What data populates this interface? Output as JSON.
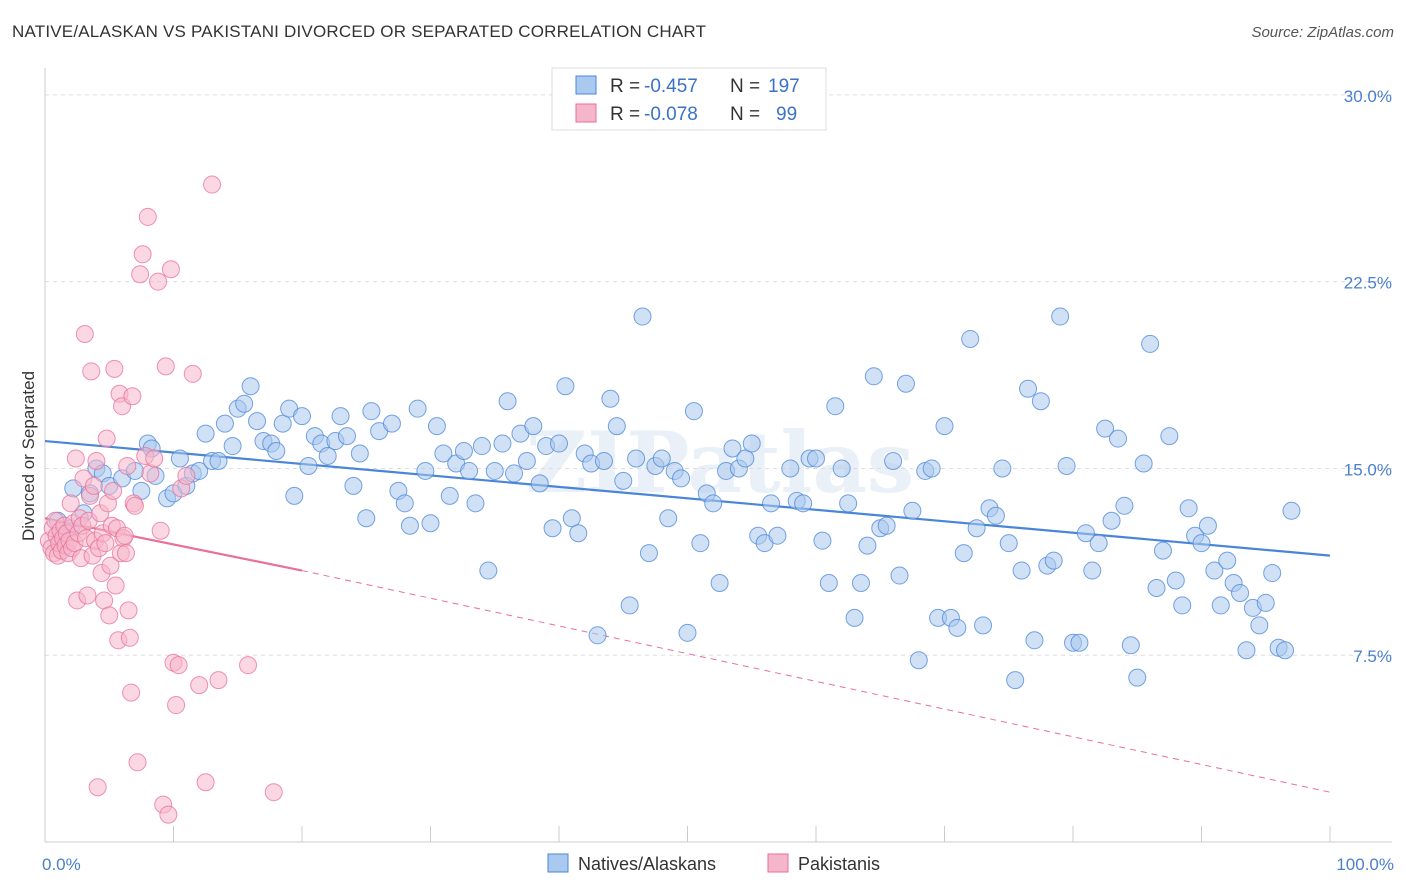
{
  "title": "NATIVE/ALASKAN VS PAKISTANI DIVORCED OR SEPARATED CORRELATION CHART",
  "source": "Source: ZipAtlas.com",
  "watermark": "ZIPatlas",
  "chart_data": {
    "type": "scatter",
    "ylabel": "Divorced or Separated",
    "xlim": [
      0,
      100
    ],
    "ylim": [
      0,
      31
    ],
    "x_ticks": [
      "0.0%",
      "100.0%"
    ],
    "y_ticks": [
      {
        "value": 7.5,
        "label": "7.5%"
      },
      {
        "value": 15.0,
        "label": "15.0%"
      },
      {
        "value": 22.5,
        "label": "22.5%"
      },
      {
        "value": 30.0,
        "label": "30.0%"
      }
    ],
    "grid": "horizontal dashed",
    "legend_position": "top-center",
    "series": [
      {
        "name": "Natives/Alaskans",
        "color": "#4a86d8",
        "fill": "#aac9ef",
        "r_label": "R =",
        "r_value": "-0.457",
        "n_label": "N =",
        "n_value": "197",
        "trend": {
          "x1": 0,
          "y1": 16.1,
          "x2": 100,
          "y2": 11.5
        },
        "points": [
          [
            1,
            12.9
          ],
          [
            1.3,
            12.3
          ],
          [
            2,
            12.6
          ],
          [
            2.2,
            14.2
          ],
          [
            3,
            13.2
          ],
          [
            3.5,
            14.0
          ],
          [
            4,
            15.0
          ],
          [
            4.5,
            14.8
          ],
          [
            5,
            14.3
          ],
          [
            6,
            14.6
          ],
          [
            7,
            14.9
          ],
          [
            7.5,
            14.1
          ],
          [
            8,
            16.0
          ],
          [
            8.3,
            15.8
          ],
          [
            8.6,
            14.7
          ],
          [
            9.5,
            13.8
          ],
          [
            10,
            14.0
          ],
          [
            10.5,
            15.4
          ],
          [
            11,
            14.3
          ],
          [
            11.5,
            14.8
          ],
          [
            12,
            14.9
          ],
          [
            12.5,
            16.4
          ],
          [
            13,
            15.3
          ],
          [
            13.5,
            15.3
          ],
          [
            14,
            16.8
          ],
          [
            14.6,
            15.9
          ],
          [
            15,
            17.4
          ],
          [
            15.5,
            17.6
          ],
          [
            16,
            18.3
          ],
          [
            16.5,
            16.9
          ],
          [
            17,
            16.1
          ],
          [
            17.6,
            16.0
          ],
          [
            18,
            15.7
          ],
          [
            18.5,
            16.8
          ],
          [
            19,
            17.4
          ],
          [
            19.4,
            13.9
          ],
          [
            20,
            17.1
          ],
          [
            20.5,
            15.1
          ],
          [
            21,
            16.3
          ],
          [
            21.5,
            16.0
          ],
          [
            22,
            15.5
          ],
          [
            22.6,
            16.1
          ],
          [
            23,
            17.1
          ],
          [
            23.5,
            16.3
          ],
          [
            24,
            14.3
          ],
          [
            24.5,
            15.6
          ],
          [
            25,
            13.0
          ],
          [
            25.4,
            17.3
          ],
          [
            26,
            16.5
          ],
          [
            27,
            16.8
          ],
          [
            27.5,
            14.1
          ],
          [
            28,
            13.6
          ],
          [
            28.4,
            12.7
          ],
          [
            29,
            17.4
          ],
          [
            29.6,
            14.9
          ],
          [
            30,
            12.8
          ],
          [
            30.5,
            16.7
          ],
          [
            31,
            15.6
          ],
          [
            31.5,
            13.9
          ],
          [
            32,
            15.2
          ],
          [
            32.6,
            15.7
          ],
          [
            33,
            14.9
          ],
          [
            33.5,
            13.6
          ],
          [
            34,
            15.9
          ],
          [
            34.5,
            10.9
          ],
          [
            35,
            14.9
          ],
          [
            35.6,
            16.0
          ],
          [
            36,
            17.7
          ],
          [
            36.5,
            14.8
          ],
          [
            37,
            16.4
          ],
          [
            37.5,
            15.3
          ],
          [
            38,
            16.7
          ],
          [
            38.5,
            14.4
          ],
          [
            39,
            15.9
          ],
          [
            39.5,
            12.6
          ],
          [
            40,
            16.0
          ],
          [
            40.5,
            18.3
          ],
          [
            41,
            13.0
          ],
          [
            41.5,
            12.4
          ],
          [
            42,
            15.6
          ],
          [
            42.5,
            15.2
          ],
          [
            43,
            8.3
          ],
          [
            43.5,
            15.3
          ],
          [
            44,
            17.8
          ],
          [
            44.5,
            16.7
          ],
          [
            45,
            14.5
          ],
          [
            45.5,
            9.5
          ],
          [
            46,
            15.4
          ],
          [
            46.5,
            21.1
          ],
          [
            47,
            11.6
          ],
          [
            47.5,
            15.1
          ],
          [
            48,
            15.4
          ],
          [
            48.5,
            13.0
          ],
          [
            49,
            14.9
          ],
          [
            49.5,
            14.6
          ],
          [
            50,
            8.4
          ],
          [
            50.5,
            17.3
          ],
          [
            51,
            12.0
          ],
          [
            51.5,
            14.0
          ],
          [
            52,
            13.6
          ],
          [
            52.5,
            10.4
          ],
          [
            53,
            14.9
          ],
          [
            53.5,
            15.8
          ],
          [
            54,
            15.0
          ],
          [
            54.5,
            15.4
          ],
          [
            55,
            16.0
          ],
          [
            55.5,
            12.3
          ],
          [
            56,
            12.0
          ],
          [
            56.5,
            13.6
          ],
          [
            57,
            12.3
          ],
          [
            58,
            15.0
          ],
          [
            58.5,
            13.7
          ],
          [
            59,
            13.6
          ],
          [
            59.5,
            15.4
          ],
          [
            60,
            15.4
          ],
          [
            60.5,
            12.1
          ],
          [
            61,
            10.4
          ],
          [
            61.5,
            17.5
          ],
          [
            62,
            15.0
          ],
          [
            62.5,
            13.6
          ],
          [
            63,
            9.0
          ],
          [
            63.5,
            10.4
          ],
          [
            64,
            11.9
          ],
          [
            64.5,
            18.7
          ],
          [
            65,
            12.6
          ],
          [
            65.5,
            12.7
          ],
          [
            66,
            15.3
          ],
          [
            66.5,
            10.7
          ],
          [
            67,
            18.4
          ],
          [
            67.5,
            13.3
          ],
          [
            68,
            7.3
          ],
          [
            68.5,
            14.9
          ],
          [
            69,
            15.0
          ],
          [
            69.5,
            9.0
          ],
          [
            70,
            16.7
          ],
          [
            70.5,
            9.0
          ],
          [
            71,
            8.6
          ],
          [
            71.5,
            11.6
          ],
          [
            72,
            20.2
          ],
          [
            72.5,
            12.6
          ],
          [
            73,
            8.7
          ],
          [
            73.5,
            13.4
          ],
          [
            74,
            13.1
          ],
          [
            74.5,
            15.0
          ],
          [
            75,
            12.0
          ],
          [
            75.5,
            6.5
          ],
          [
            76,
            10.9
          ],
          [
            76.5,
            18.2
          ],
          [
            77,
            8.1
          ],
          [
            77.5,
            17.7
          ],
          [
            78,
            11.1
          ],
          [
            78.5,
            11.3
          ],
          [
            79,
            21.1
          ],
          [
            79.5,
            15.1
          ],
          [
            80,
            8.0
          ],
          [
            80.5,
            8.0
          ],
          [
            81,
            12.4
          ],
          [
            81.5,
            10.9
          ],
          [
            82,
            12.0
          ],
          [
            82.5,
            16.6
          ],
          [
            83,
            12.9
          ],
          [
            83.5,
            16.2
          ],
          [
            84,
            13.5
          ],
          [
            84.5,
            7.9
          ],
          [
            85,
            6.6
          ],
          [
            85.5,
            15.2
          ],
          [
            86,
            20.0
          ],
          [
            86.5,
            10.2
          ],
          [
            87,
            11.7
          ],
          [
            87.5,
            16.3
          ],
          [
            88,
            10.5
          ],
          [
            88.5,
            9.5
          ],
          [
            89,
            13.4
          ],
          [
            89.5,
            12.3
          ],
          [
            90,
            12.0
          ],
          [
            90.5,
            12.7
          ],
          [
            91,
            10.9
          ],
          [
            91.5,
            9.5
          ],
          [
            92,
            11.3
          ],
          [
            92.5,
            10.4
          ],
          [
            93,
            10.0
          ],
          [
            93.5,
            7.7
          ],
          [
            94,
            9.4
          ],
          [
            94.5,
            8.7
          ],
          [
            95,
            9.6
          ],
          [
            95.5,
            10.8
          ],
          [
            96,
            7.8
          ],
          [
            96.5,
            7.7
          ],
          [
            97,
            13.3
          ]
        ]
      },
      {
        "name": "Pakistanis",
        "color": "#e8709a",
        "fill": "#f5b6cb",
        "r_label": "R =",
        "r_value": "-0.078",
        "n_label": "N =",
        "n_value": "99",
        "trend": {
          "x1": 0,
          "y1": 13.0,
          "x2": 20,
          "y2": 10.9
        },
        "trend_dashed": {
          "x1": 20,
          "y1": 10.9,
          "x2": 100,
          "y2": 2.0
        },
        "points": [
          [
            0.3,
            12.1
          ],
          [
            0.5,
            11.8
          ],
          [
            0.6,
            12.6
          ],
          [
            0.7,
            11.6
          ],
          [
            0.8,
            12.9
          ],
          [
            0.9,
            12.3
          ],
          [
            1.0,
            11.5
          ],
          [
            1.1,
            12.0
          ],
          [
            1.2,
            12.5
          ],
          [
            1.3,
            11.7
          ],
          [
            1.4,
            12.2
          ],
          [
            1.5,
            12.7
          ],
          [
            1.6,
            11.9
          ],
          [
            1.7,
            12.4
          ],
          [
            1.8,
            11.6
          ],
          [
            1.9,
            12.1
          ],
          [
            2.0,
            13.6
          ],
          [
            2.1,
            11.8
          ],
          [
            2.2,
            12.8
          ],
          [
            2.3,
            12.0
          ],
          [
            2.4,
            15.4
          ],
          [
            2.5,
            9.7
          ],
          [
            2.6,
            12.4
          ],
          [
            2.7,
            13.0
          ],
          [
            2.8,
            11.4
          ],
          [
            2.9,
            12.7
          ],
          [
            3.0,
            14.6
          ],
          [
            3.1,
            20.4
          ],
          [
            3.2,
            12.2
          ],
          [
            3.3,
            9.9
          ],
          [
            3.4,
            12.9
          ],
          [
            3.5,
            13.9
          ],
          [
            3.6,
            18.9
          ],
          [
            3.7,
            11.5
          ],
          [
            3.8,
            14.3
          ],
          [
            3.9,
            12.1
          ],
          [
            4.0,
            15.3
          ],
          [
            4.1,
            2.2
          ],
          [
            4.2,
            11.8
          ],
          [
            4.3,
            13.2
          ],
          [
            4.4,
            10.8
          ],
          [
            4.5,
            12.4
          ],
          [
            4.6,
            9.7
          ],
          [
            4.7,
            12.0
          ],
          [
            4.8,
            16.2
          ],
          [
            4.9,
            13.6
          ],
          [
            5.0,
            9.1
          ],
          [
            5.1,
            11.1
          ],
          [
            5.2,
            12.7
          ],
          [
            5.3,
            14.1
          ],
          [
            5.4,
            19.0
          ],
          [
            5.5,
            10.3
          ],
          [
            5.6,
            12.6
          ],
          [
            5.7,
            8.1
          ],
          [
            5.8,
            18.0
          ],
          [
            5.9,
            11.6
          ],
          [
            6.0,
            17.5
          ],
          [
            6.1,
            12.2
          ],
          [
            6.2,
            12.3
          ],
          [
            6.3,
            11.6
          ],
          [
            6.4,
            15.1
          ],
          [
            6.5,
            9.3
          ],
          [
            6.6,
            8.2
          ],
          [
            6.7,
            6.0
          ],
          [
            6.8,
            17.9
          ],
          [
            6.9,
            13.6
          ],
          [
            7.0,
            13.5
          ],
          [
            7.2,
            3.2
          ],
          [
            7.4,
            22.8
          ],
          [
            7.6,
            23.6
          ],
          [
            7.8,
            15.5
          ],
          [
            8.0,
            25.1
          ],
          [
            8.2,
            14.8
          ],
          [
            8.5,
            15.4
          ],
          [
            8.8,
            22.5
          ],
          [
            9.0,
            12.5
          ],
          [
            9.2,
            1.5
          ],
          [
            9.4,
            19.1
          ],
          [
            9.6,
            1.1
          ],
          [
            9.8,
            23.0
          ],
          [
            10.0,
            7.2
          ],
          [
            10.2,
            5.5
          ],
          [
            10.4,
            7.1
          ],
          [
            10.6,
            14.2
          ],
          [
            11.0,
            14.7
          ],
          [
            11.5,
            18.8
          ],
          [
            12.0,
            6.3
          ],
          [
            12.5,
            2.4
          ],
          [
            13.0,
            26.4
          ],
          [
            13.5,
            6.5
          ],
          [
            15.8,
            7.1
          ],
          [
            17.8,
            2.0
          ]
        ]
      }
    ]
  }
}
